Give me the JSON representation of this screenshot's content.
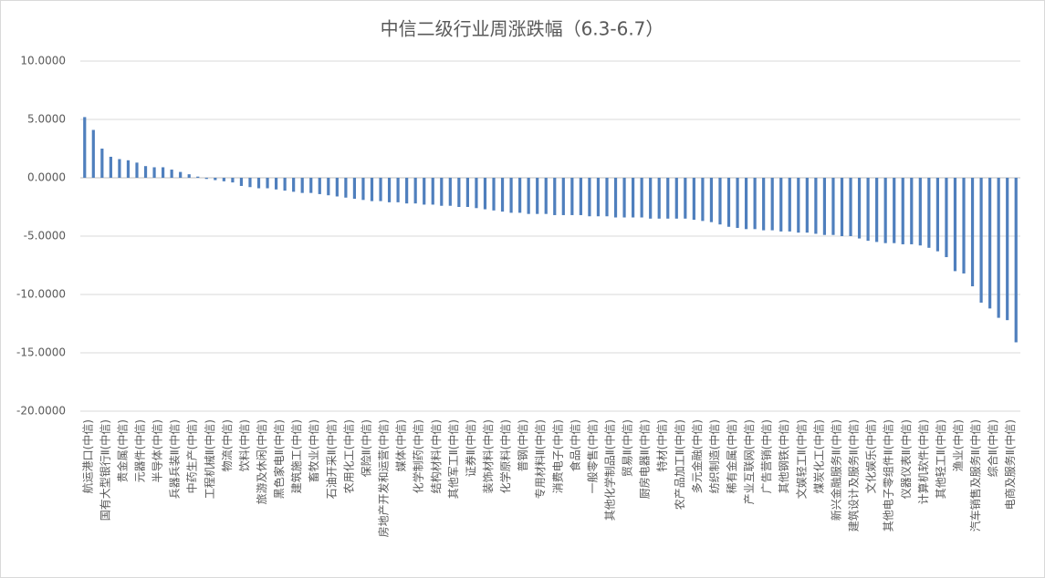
{
  "chart_data": {
    "type": "bar",
    "title": "中信二级行业周涨跌幅（6.3-6.7）",
    "categories": [
      "航运港口(中信)",
      null,
      "国有大型银行Ⅱ(中信)",
      null,
      "贵金属(中信)",
      null,
      "元器件(中信)",
      null,
      "半导体(中信)",
      null,
      "兵器兵装Ⅱ(中信)",
      null,
      "中药生产(中信)",
      null,
      "工程机械Ⅱ(中信)",
      null,
      "物流(中信)",
      null,
      "饮料(中信)",
      null,
      "旅游及休闲(中信)",
      null,
      "黑色家电Ⅱ(中信)",
      null,
      "建筑施工(中信)",
      null,
      "畜牧业(中信)",
      null,
      "石油开采Ⅱ(中信)",
      null,
      "农用化工(中信)",
      null,
      "保险Ⅱ(中信)",
      null,
      "房地产开发和运营(中信)",
      null,
      "媒体(中信)",
      null,
      "化学制药(中信)",
      null,
      "结构材料(中信)",
      null,
      "其他军工Ⅱ(中信)",
      null,
      "证券Ⅱ(中信)",
      null,
      "装饰材料(中信)",
      null,
      "化学原料(中信)",
      null,
      "普钢(中信)",
      null,
      "专用材料Ⅱ(中信)",
      null,
      "消费电子(中信)",
      null,
      "食品(中信)",
      null,
      "一般零售(中信)",
      null,
      "其他化学制品Ⅱ(中信)",
      null,
      "贸易Ⅱ(中信)",
      null,
      "厨房电器Ⅱ(中信)",
      null,
      "特材(中信)",
      null,
      "农产品加工Ⅱ(中信)",
      null,
      "多元金融(中信)",
      null,
      "纺织制造(中信)",
      null,
      "稀有金属(中信)",
      null,
      "产业互联网(中信)",
      null,
      "广告营销(中信)",
      null,
      "其他钢铁(中信)",
      null,
      "文娱轻工Ⅱ(中信)",
      null,
      "煤炭化工(中信)",
      null,
      "新兴金融服务Ⅱ(中信)",
      null,
      "建筑设计及服务Ⅱ(中信)",
      null,
      "文化娱乐(中信)",
      null,
      "其他电子零组件Ⅱ(中信)",
      null,
      "仪器仪表Ⅱ(中信)",
      null,
      "计算机软件(中信)",
      null,
      "其他轻工Ⅱ(中信)",
      null,
      "渔业(中信)",
      null,
      "汽车销售及服务Ⅱ(中信)",
      null,
      "综合Ⅱ(中信)",
      null,
      "电商及服务Ⅱ(中信)",
      null
    ],
    "values": [
      5.2,
      4.1,
      2.5,
      1.8,
      1.6,
      1.5,
      1.3,
      1.0,
      0.9,
      0.9,
      0.7,
      0.5,
      0.3,
      0.1,
      -0.1,
      -0.2,
      -0.3,
      -0.4,
      -0.7,
      -0.8,
      -0.9,
      -0.9,
      -1.0,
      -1.1,
      -1.2,
      -1.3,
      -1.3,
      -1.4,
      -1.5,
      -1.6,
      -1.7,
      -1.8,
      -1.9,
      -2.0,
      -2.0,
      -2.1,
      -2.1,
      -2.2,
      -2.2,
      -2.3,
      -2.3,
      -2.4,
      -2.4,
      -2.5,
      -2.5,
      -2.6,
      -2.7,
      -2.8,
      -2.9,
      -3.0,
      -3.0,
      -3.1,
      -3.1,
      -3.1,
      -3.2,
      -3.2,
      -3.2,
      -3.2,
      -3.3,
      -3.3,
      -3.3,
      -3.4,
      -3.4,
      -3.4,
      -3.4,
      -3.5,
      -3.5,
      -3.5,
      -3.5,
      -3.5,
      -3.6,
      -3.7,
      -3.8,
      -4.0,
      -4.2,
      -4.3,
      -4.4,
      -4.4,
      -4.5,
      -4.5,
      -4.6,
      -4.6,
      -4.7,
      -4.7,
      -4.8,
      -4.9,
      -4.9,
      -5.0,
      -5.0,
      -5.2,
      -5.4,
      -5.5,
      -5.6,
      -5.6,
      -5.7,
      -5.7,
      -5.8,
      -6.0,
      -6.3,
      -6.8,
      -8.0,
      -8.2,
      -9.3,
      -10.7,
      -11.2,
      -12.0,
      -12.2,
      -14.1
    ],
    "color": "#4f7fbd",
    "ylim": [
      -20,
      10
    ],
    "yticks": [
      {
        "value": -20,
        "label": "-20.0000"
      },
      {
        "value": -15,
        "label": "-15.0000"
      },
      {
        "value": -10,
        "label": "-10.0000"
      },
      {
        "value": -5,
        "label": "-5.0000"
      },
      {
        "value": 0,
        "label": "0.0000"
      },
      {
        "value": 5,
        "label": "5.0000"
      },
      {
        "value": 10,
        "label": "10.0000"
      }
    ],
    "grid": true
  }
}
